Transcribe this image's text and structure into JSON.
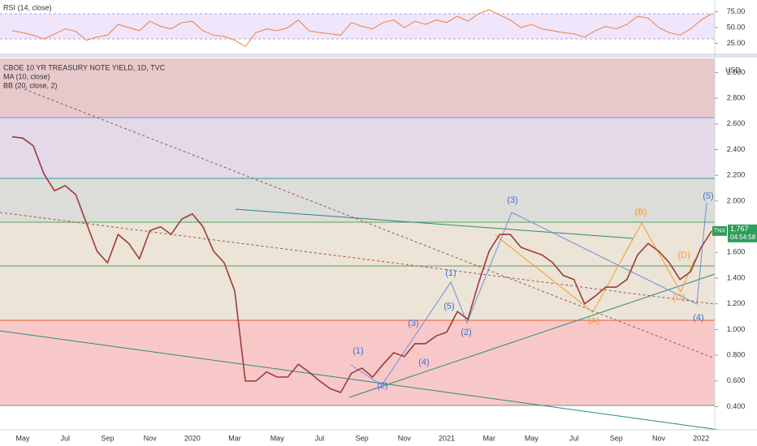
{
  "chart_data": [
    {
      "type": "line",
      "title": "RSI (14, close)",
      "color": "#f57c3a",
      "values": [
        45,
        42,
        38,
        32,
        40,
        48,
        44,
        30,
        35,
        38,
        55,
        50,
        45,
        60,
        52,
        48,
        58,
        60,
        45,
        38,
        36,
        30,
        20,
        42,
        48,
        45,
        50,
        62,
        45,
        42,
        40,
        38,
        58,
        52,
        48,
        58,
        62,
        50,
        60,
        55,
        62,
        58,
        68,
        60,
        72,
        78,
        70,
        62,
        50,
        55,
        48,
        45,
        42,
        40,
        35,
        45,
        52,
        48,
        55,
        68,
        65,
        50,
        42,
        38,
        48,
        62,
        72
      ],
      "ylim": [
        9,
        93.6
      ],
      "yticks": [
        {
          "value": 75,
          "label": "75.00"
        },
        {
          "value": 50,
          "label": "50.00"
        },
        {
          "value": 25,
          "label": "25.00"
        }
      ]
    },
    {
      "type": "line",
      "title": "CBOE 10 YR TREASURY NOTE YIELD, 1D, TVC",
      "indicators": [
        "MA (10, close)",
        "BB (20, close, 2)"
      ],
      "currency": "USD",
      "symbol": "TNX",
      "countdown": "04:54:58",
      "color": "#9c3b3b",
      "categories": [
        null,
        "May",
        null,
        null,
        null,
        "Jul",
        null,
        null,
        null,
        "Sep",
        null,
        null,
        null,
        "Nov",
        null,
        null,
        null,
        "2020",
        null,
        null,
        null,
        "Mar",
        null,
        null,
        null,
        "May",
        null,
        null,
        null,
        "Jul",
        null,
        null,
        null,
        "Sep",
        null,
        null,
        null,
        "Nov",
        null,
        null,
        null,
        "2021",
        null,
        null,
        null,
        "Mar",
        null,
        null,
        null,
        "May",
        null,
        null,
        null,
        "Jul",
        null,
        null,
        null,
        "Sep",
        null,
        null,
        null,
        "Nov",
        null,
        null,
        null,
        "2022",
        null
      ],
      "values": [
        2.5,
        2.49,
        2.43,
        2.21,
        2.08,
        2.12,
        2.05,
        1.83,
        1.61,
        1.52,
        1.74,
        1.67,
        1.55,
        1.77,
        1.8,
        1.74,
        1.86,
        1.9,
        1.8,
        1.61,
        1.52,
        1.3,
        0.6,
        0.6,
        0.67,
        0.63,
        0.63,
        0.73,
        0.67,
        0.6,
        0.54,
        0.51,
        0.66,
        0.7,
        0.63,
        0.73,
        0.82,
        0.79,
        0.89,
        0.89,
        0.95,
        0.98,
        1.14,
        1.08,
        1.36,
        1.61,
        1.74,
        1.74,
        1.64,
        1.61,
        1.58,
        1.52,
        1.42,
        1.39,
        1.2,
        1.26,
        1.33,
        1.33,
        1.39,
        1.58,
        1.67,
        1.61,
        1.52,
        1.39,
        1.45,
        1.64,
        1.767
      ],
      "ylim": [
        0.22,
        3.11
      ],
      "yticks": [
        {
          "value": 3,
          "label": "3.000"
        },
        {
          "value": 2.8,
          "label": "2.800"
        },
        {
          "value": 2.6,
          "label": "2.600"
        },
        {
          "value": 2.4,
          "label": "2.400"
        },
        {
          "value": 2.2,
          "label": "2.200"
        },
        {
          "value": 2,
          "label": "2.000"
        },
        {
          "value": 1.6,
          "label": "1.600"
        },
        {
          "value": 1.4,
          "label": "1.400"
        },
        {
          "value": 1.2,
          "label": "1.200"
        },
        {
          "value": 1,
          "label": "1.000"
        },
        {
          "value": 0.8,
          "label": "0.800"
        },
        {
          "value": 0.6,
          "label": "0.600"
        },
        {
          "value": 0.4,
          "label": "0.400"
        }
      ],
      "annotations": [
        {
          "text": "(1)",
          "color": "#3f6fd8"
        },
        {
          "text": "(2)",
          "color": "#3f6fd8"
        },
        {
          "text": "(3)",
          "color": "#3f6fd8"
        },
        {
          "text": "(4)",
          "color": "#3f6fd8"
        },
        {
          "text": "(5)",
          "color": "#3f6fd8"
        },
        {
          "text": "(1)",
          "color": "#3f6fd8"
        },
        {
          "text": "(2)",
          "color": "#3f6fd8"
        },
        {
          "text": "(3)",
          "color": "#3f6fd8"
        },
        {
          "text": "(4)",
          "color": "#3f6fd8"
        },
        {
          "text": "(5)",
          "color": "#3f6fd8"
        },
        {
          "text": "(A)",
          "color": "#f39c2a"
        },
        {
          "text": "(B)",
          "color": "#f39c2a"
        },
        {
          "text": "(C)",
          "color": "#f39c2a"
        },
        {
          "text": "(D)",
          "color": "#f39c2a"
        }
      ]
    }
  ]
}
